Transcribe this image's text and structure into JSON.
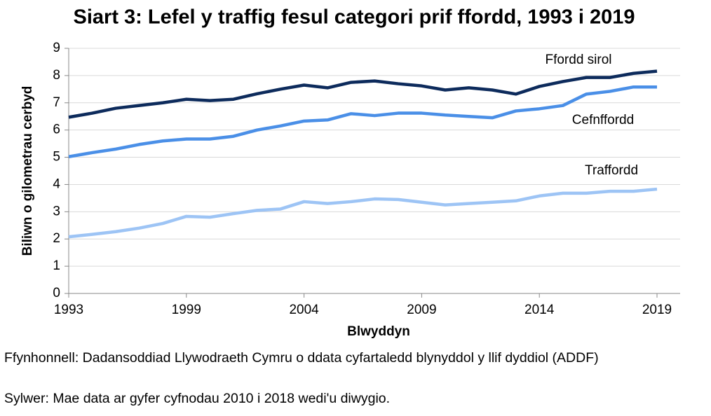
{
  "chart_data": {
    "type": "line",
    "title": "Siart 3: Lefel y traffig fesul categori prif ffordd, 1993 i 2019",
    "x_label": "Blwyddyn",
    "y_label": "Biliwn o gilometrau cerbyd",
    "categories": [
      "1993",
      null,
      null,
      null,
      null,
      "1999",
      null,
      null,
      null,
      null,
      "2004",
      null,
      null,
      null,
      null,
      "2009",
      null,
      null,
      null,
      null,
      "2014",
      null,
      null,
      null,
      null,
      "2019"
    ],
    "series": [
      {
        "name": "Ffordd sirol",
        "color": "#0d2b5c",
        "values": [
          6.47,
          6.62,
          6.8,
          6.9,
          7.0,
          7.13,
          7.08,
          7.13,
          7.33,
          7.5,
          7.65,
          7.55,
          7.75,
          7.8,
          7.7,
          7.62,
          7.47,
          7.55,
          7.47,
          7.32,
          7.6,
          7.78,
          7.93,
          7.93,
          8.08,
          8.16
        ]
      },
      {
        "name": "Cefnffordd",
        "color": "#4a8fe7",
        "values": [
          5.02,
          5.17,
          5.3,
          5.47,
          5.6,
          5.67,
          5.67,
          5.77,
          6.0,
          6.15,
          6.33,
          6.37,
          6.6,
          6.53,
          6.62,
          6.62,
          6.55,
          6.5,
          6.45,
          6.7,
          6.78,
          6.9,
          7.32,
          7.42,
          7.58,
          7.58
        ]
      },
      {
        "name": "Traffordd",
        "color": "#9dc4f5",
        "values": [
          2.08,
          2.17,
          2.27,
          2.4,
          2.57,
          2.83,
          2.8,
          2.93,
          3.05,
          3.1,
          3.37,
          3.3,
          3.37,
          3.47,
          3.45,
          3.35,
          3.25,
          3.3,
          3.35,
          3.4,
          3.58,
          3.68,
          3.68,
          3.75,
          3.75,
          3.83
        ]
      }
    ],
    "ylim": [
      0,
      9
    ],
    "yticks": [
      0,
      1,
      2,
      3,
      4,
      5,
      6,
      7,
      8,
      9
    ],
    "grid": true,
    "notes": [
      "Ffynhonnell: Dadansoddiad Llywodraeth Cymru o ddata cyfartaledd blynyddol y llif dyddiol (ADDF)",
      "Sylwer: Mae data ar gyfer cyfnodau 2010 i 2018 wedi'u diwygio."
    ]
  }
}
